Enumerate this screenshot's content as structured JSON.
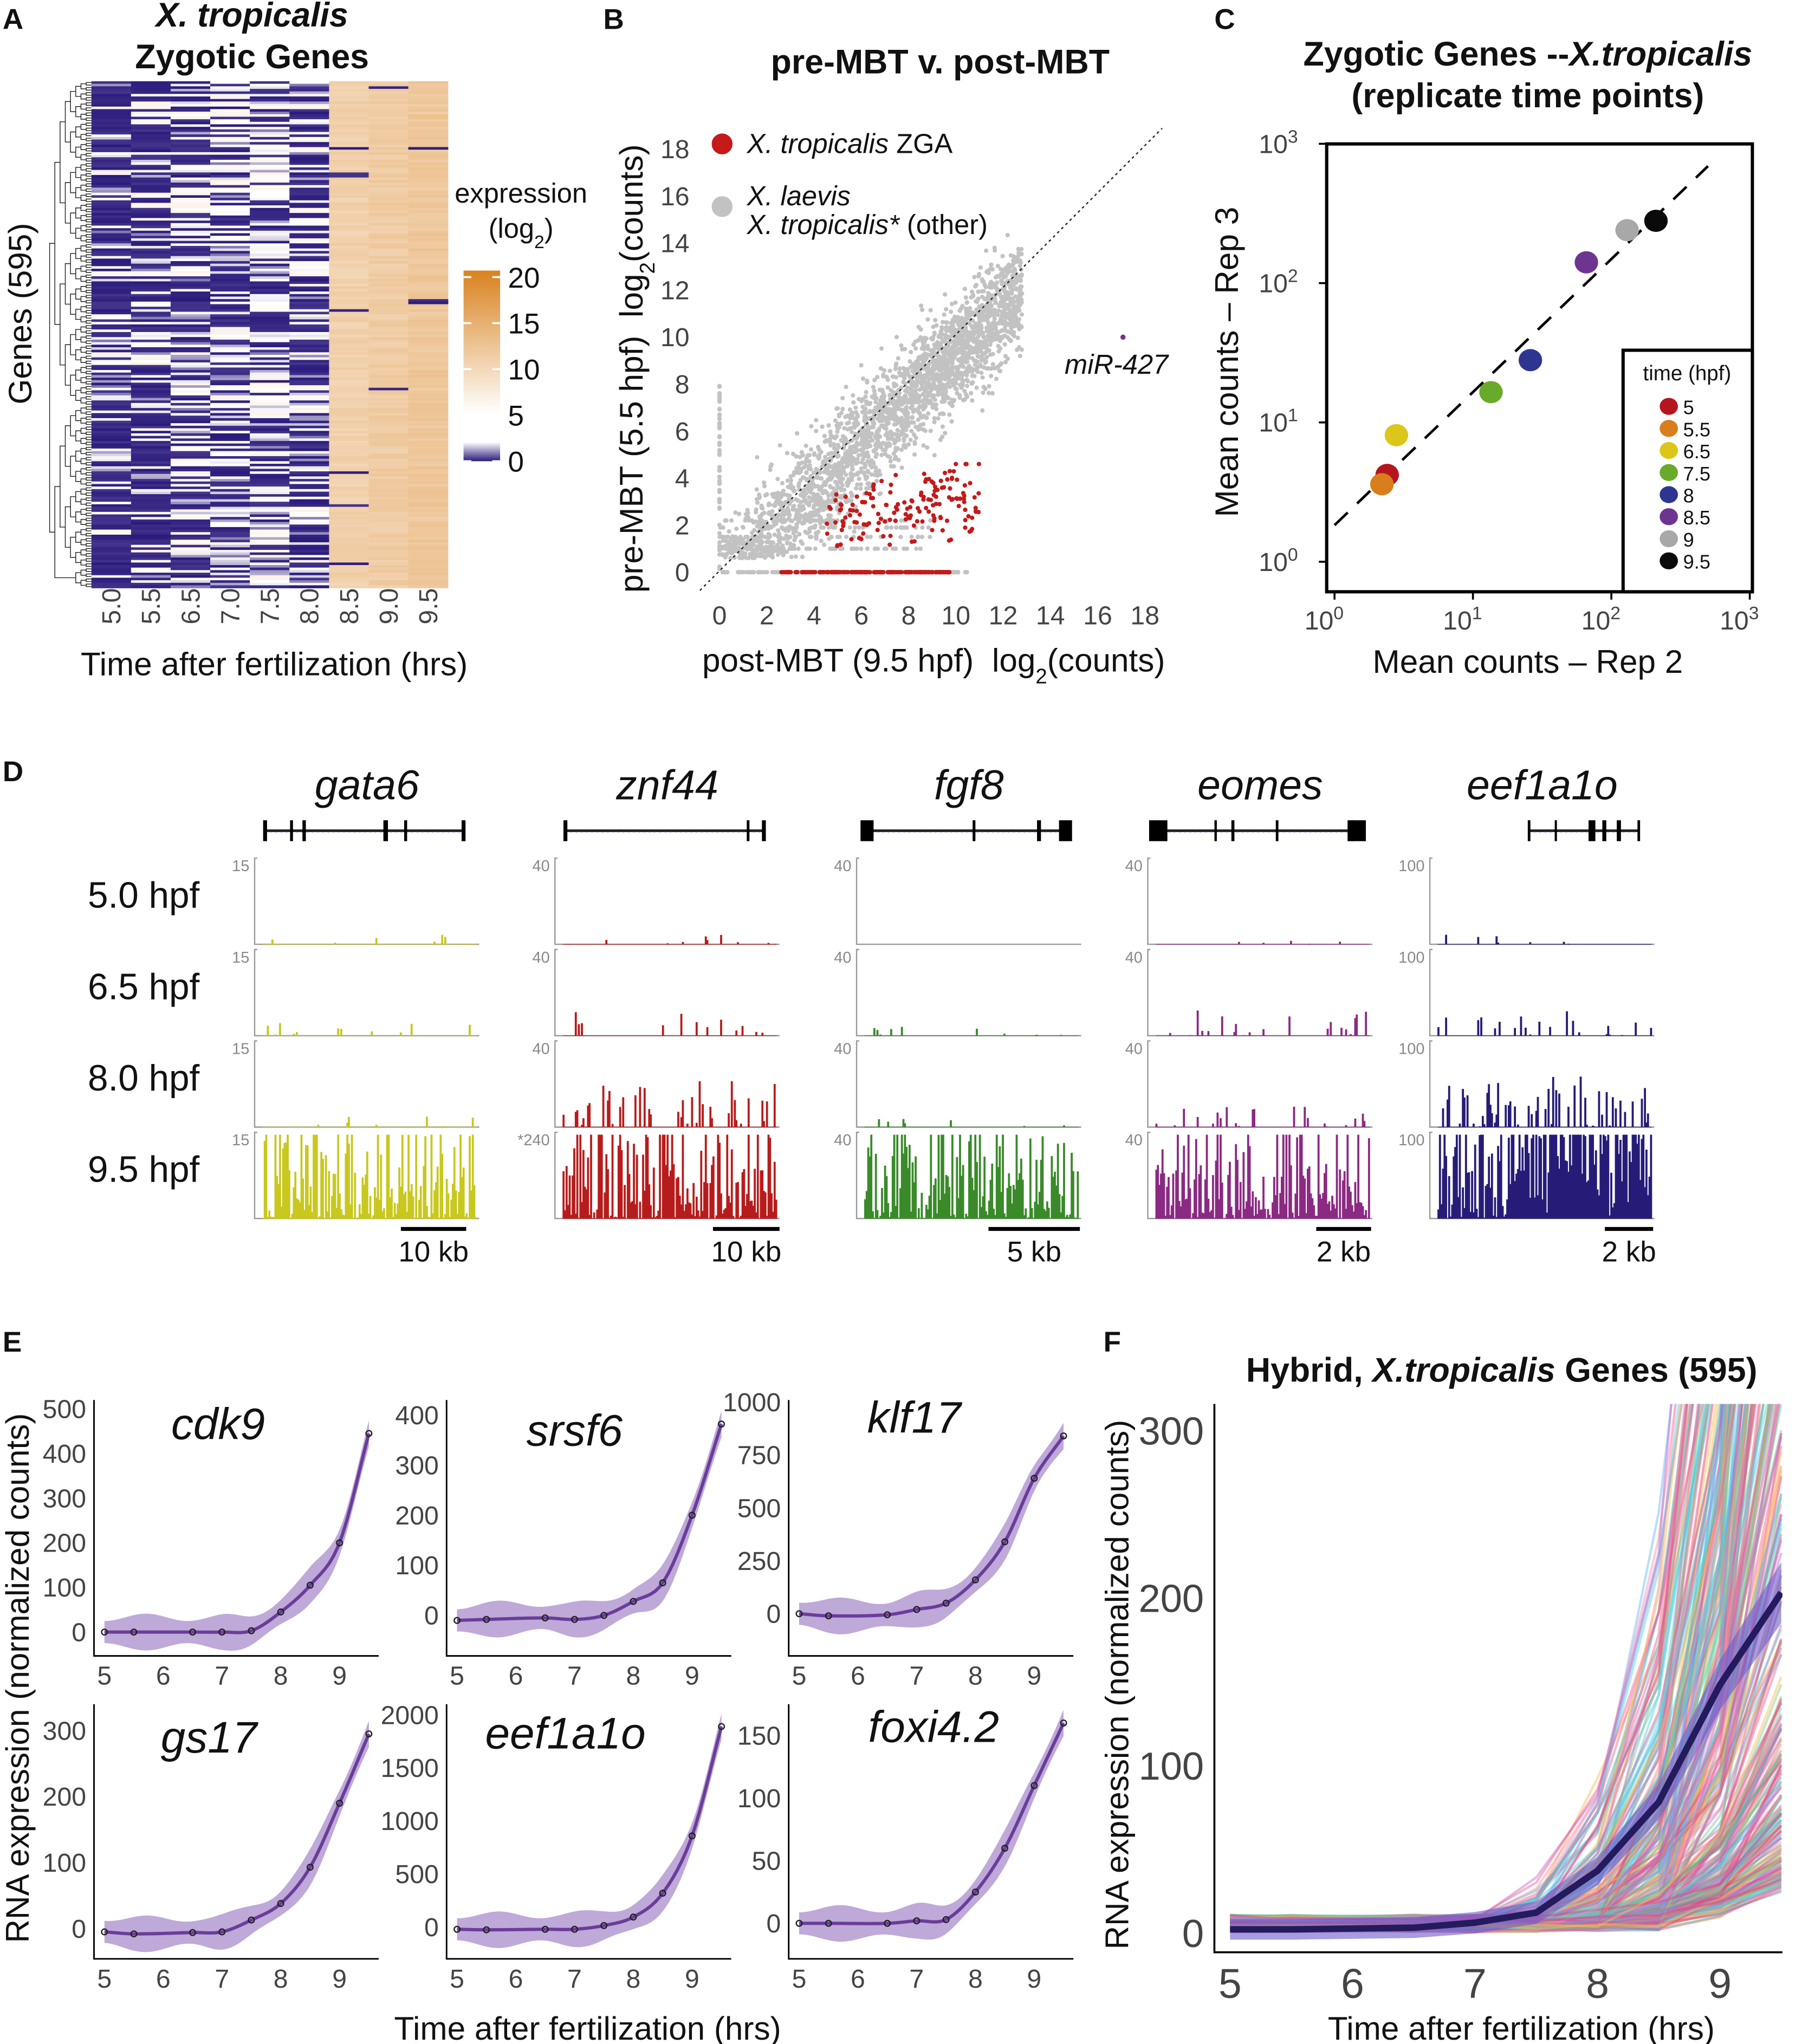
{
  "panels": {
    "a": "A",
    "b": "B",
    "c": "C",
    "d": "D",
    "e": "E",
    "f": "F"
  },
  "panel_a": {
    "title_line1": "X. tropicalis",
    "title_line2": "Zygotic Genes",
    "ylabel": "Genes (595)",
    "xlabel": "Time after fertilization (hrs)",
    "legend_title": "expression",
    "legend_unit": "(log",
    "legend_unit_sub": "2",
    "legend_unit_end": ")"
  },
  "panel_b": {
    "title": "pre-MBT v. post-MBT",
    "ylabel": "pre-MBT (5.5 hpf)",
    "xlabel": "post-MBT (9.5 hpf)",
    "unit_pre": "log",
    "unit_sub": "2",
    "unit_post": "(counts)",
    "legend": [
      {
        "label_italic": "X. tropicalis",
        "label": " ZGA",
        "color": "#c41a1a"
      },
      {
        "label_italic": "X. laevis",
        "label_italic2": "X. tropicalis*",
        "label": " (other)",
        "color": "#c2c2c2"
      }
    ],
    "annotation": "miR-427",
    "annotation_color": "#7b3294"
  },
  "panel_c": {
    "title_line1": "Zygotic Genes --",
    "title_line1_italic": "X.tropicalis",
    "title_line2": "(replicate time points)",
    "xlabel": "Mean counts – Rep 2",
    "ylabel": "Mean counts – Rep 3",
    "legend_title": "time (hpf)"
  },
  "panel_d": {
    "genes": [
      {
        "name": "gata6",
        "color": "#c8c81e",
        "scales": [
          "15",
          "15",
          "15",
          "15"
        ],
        "scalebar": "10 kb",
        "relative_signal": [
          0.12,
          0.15,
          0.12,
          1.0
        ]
      },
      {
        "name": "znf44",
        "color": "#b71c1c",
        "scales": [
          "40",
          "40",
          "40",
          "*240"
        ],
        "scalebar": "10 kb",
        "relative_signal": [
          0.15,
          0.3,
          0.55,
          1.0
        ]
      },
      {
        "name": "fgf8",
        "color": "#3a8a2a",
        "scales": [
          "40",
          "40",
          "40",
          "40"
        ],
        "scalebar": "5 kb",
        "relative_signal": [
          0.0,
          0.12,
          0.1,
          1.0
        ]
      },
      {
        "name": "eomes",
        "color": "#8b2a82",
        "scales": [
          "40",
          "40",
          "40",
          "40"
        ],
        "scalebar": "2 kb",
        "relative_signal": [
          0.08,
          0.3,
          0.25,
          1.0
        ]
      },
      {
        "name": "eef1a1o",
        "color": "#261c78",
        "scales": [
          "100",
          "100",
          "100",
          "100"
        ],
        "scalebar": "2 kb",
        "relative_signal": [
          0.12,
          0.3,
          0.6,
          1.0
        ]
      }
    ],
    "rows": [
      "5.0 hpf",
      "6.5 hpf",
      "8.0 hpf",
      "9.5 hpf"
    ]
  },
  "panel_e": {
    "ylabel": "RNA expression (normalized counts)",
    "xlabel": "Time after fertilization (hrs)"
  },
  "panel_f": {
    "title_pre": "Hybrid, ",
    "title_italic": "X.tropicalis",
    "title_post": " Genes (595)",
    "ylabel": "RNA expression (normalized counts)",
    "xlabel": "Time after fertilization (hrs)"
  },
  "chart_data": [
    {
      "panel": "A",
      "type": "heatmap",
      "title": "X. tropicalis Zygotic Genes",
      "xlabel": "Time after fertilization (hrs)",
      "ylabel": "Genes (595)",
      "columns": [
        "5.0",
        "5.5",
        "6.5",
        "7.0",
        "7.5",
        "8.0",
        "8.5",
        "9.0",
        "9.5"
      ],
      "row_count": 595,
      "colorbar": {
        "title": "expression (log2)",
        "ticks": [
          "20",
          "15",
          "10",
          "5",
          "0"
        ],
        "range": [
          0,
          20
        ],
        "low_color": "#2b1a7c",
        "mid_color": "#ffffff",
        "high_color": "#d9821f"
      },
      "dendrogram": "left"
    },
    {
      "panel": "B",
      "type": "scatter",
      "title": "pre-MBT v. post-MBT",
      "xlabel": "post-MBT (9.5 hpf) log2(counts)",
      "ylabel": "pre-MBT (5.5 hpf) log2(counts)",
      "xlim": [
        0,
        18
      ],
      "ylim": [
        0,
        18
      ],
      "xticks": [
        "0",
        "2",
        "4",
        "6",
        "8",
        "10",
        "12",
        "14",
        "16",
        "18"
      ],
      "yticks": [
        "0",
        "2",
        "4",
        "6",
        "8",
        "10",
        "12",
        "14",
        "16",
        "18"
      ],
      "reference_line": "y = x (dotted)",
      "series": [
        {
          "name": "X. tropicalis ZGA",
          "color": "#c41a1a",
          "description_points": "x 2.5-11, y 0-4.5"
        },
        {
          "name": "X. laevis / X. tropicalis* (other)",
          "color": "#c2c2c2",
          "description_points": "cloud along y = x, x 0-13"
        }
      ],
      "labeled_points": [
        {
          "label": "miR-427",
          "x": 17.1,
          "y": 10.0
        }
      ],
      "legend": "top-left"
    },
    {
      "panel": "C",
      "type": "scatter",
      "title": "Zygotic Genes --X.tropicalis (replicate time points)",
      "xlabel": "Mean counts – Rep 2",
      "ylabel": "Mean counts – Rep 3",
      "xscale": "log",
      "yscale": "log",
      "xlim": [
        1,
        1000
      ],
      "ylim": [
        1,
        1000
      ],
      "xticks": [
        {
          "base": "10",
          "exp": "0"
        },
        {
          "base": "10",
          "exp": "1"
        },
        {
          "base": "10",
          "exp": "2"
        },
        {
          "base": "10",
          "exp": "3"
        }
      ],
      "yticks": [
        {
          "base": "10",
          "exp": "0"
        },
        {
          "base": "10",
          "exp": "1"
        },
        {
          "base": "10",
          "exp": "2"
        },
        {
          "base": "10",
          "exp": "3"
        }
      ],
      "reference_line": "y = x (dashed)",
      "legend": "bottom-right",
      "points": [
        {
          "time": "5",
          "x": 2.4,
          "y": 4.2,
          "color": "#b5161e"
        },
        {
          "time": "5.5",
          "x": 2.2,
          "y": 3.6,
          "color": "#d97e1c"
        },
        {
          "time": "6.5",
          "x": 2.8,
          "y": 8.1,
          "color": "#dcc61a"
        },
        {
          "time": "7.5",
          "x": 13.5,
          "y": 16.5,
          "color": "#6aaa2a"
        },
        {
          "time": "8",
          "x": 26,
          "y": 28,
          "color": "#2e3590"
        },
        {
          "time": "8.5",
          "x": 66,
          "y": 141,
          "color": "#6e3590"
        },
        {
          "time": "9",
          "x": 130,
          "y": 240,
          "color": "#a8a8a8"
        },
        {
          "time": "9.5",
          "x": 210,
          "y": 280,
          "color": "#0a0a0a"
        }
      ]
    },
    {
      "panel": "E",
      "type": "line",
      "xlabel": "Time after fertilization (hrs)",
      "ylabel": "RNA expression (normalized counts)",
      "x": [
        5,
        5.5,
        6.5,
        7,
        7.5,
        8,
        8.5,
        9,
        9.5
      ],
      "xticks": [
        "5",
        "6",
        "7",
        "8",
        "9"
      ],
      "line_color": "#6a3d9a",
      "ribbon_color": "#9b7bc4",
      "subplots": [
        {
          "gene": "cdk9",
          "values": [
            0,
            0,
            0,
            0,
            3,
            45,
            105,
            200,
            445
          ],
          "yticks": [
            "0",
            "100",
            "200",
            "300",
            "400",
            "500"
          ],
          "ylim": [
            -30,
            520
          ]
        },
        {
          "gene": "srsf6",
          "values": [
            -10,
            -8,
            -5,
            -8,
            0,
            28,
            65,
            200,
            382
          ],
          "yticks": [
            "0",
            "100",
            "200",
            "300",
            "400"
          ],
          "ylim": [
            -60,
            430
          ]
        },
        {
          "gene": "klf17",
          "values": [
            0,
            -10,
            -5,
            20,
            50,
            160,
            340,
            640,
            840
          ],
          "yticks": [
            "0",
            "250",
            "500",
            "750",
            "1000"
          ],
          "ylim": [
            -150,
            1010
          ]
        },
        {
          "gene": "gs17",
          "values": [
            -5,
            -8,
            -6,
            -5,
            13,
            38,
            93,
            190,
            295
          ],
          "yticks": [
            "0",
            "100",
            "200",
            "300"
          ],
          "ylim": [
            -30,
            340
          ]
        },
        {
          "gene": "eef1a1o",
          "values": [
            -20,
            -25,
            -20,
            -20,
            15,
            95,
            320,
            860,
            1890
          ],
          "yticks": [
            "0",
            "500",
            "1000",
            "1500",
            "2000"
          ],
          "ylim": [
            -200,
            2100
          ]
        },
        {
          "gene": "foxi4.2",
          "values": [
            0,
            0,
            0,
            2,
            3,
            25,
            60,
            110,
            160
          ],
          "yticks": [
            "0",
            "50",
            "100",
            "150"
          ],
          "ylim": [
            -20,
            175
          ]
        }
      ]
    },
    {
      "panel": "F",
      "type": "line",
      "title": "Hybrid, X.tropicalis Genes (595)",
      "xlabel": "Time after fertilization (hrs)",
      "ylabel": "RNA expression (normalized counts)",
      "xlim": [
        4.95,
        9.5
      ],
      "ylim": [
        -10,
        310
      ],
      "xticks": [
        "5",
        "6",
        "7",
        "8",
        "9"
      ],
      "yticks": [
        "0",
        "100",
        "200",
        "300"
      ],
      "series_count": 595,
      "mean": {
        "x": [
          5,
          5.5,
          6.5,
          7,
          7.5,
          8,
          8.5,
          9,
          9.5
        ],
        "values": [
          2,
          2,
          3,
          6,
          12,
          37,
          78,
          148,
          203
        ],
        "color": "#241a5e"
      }
    }
  ]
}
